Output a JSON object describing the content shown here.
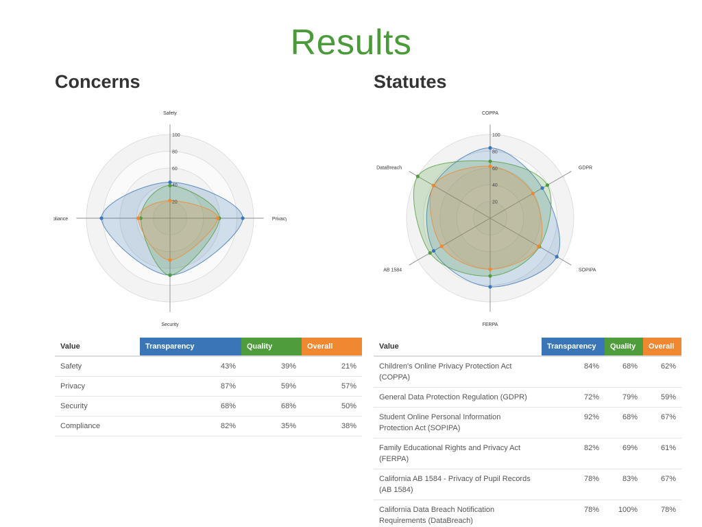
{
  "title": "Results",
  "concerns": {
    "heading": "Concerns",
    "table": {
      "headers": [
        "Value",
        "Transparency",
        "Quality",
        "Overall"
      ],
      "rows": [
        [
          "Safety",
          "43%",
          "39%",
          "21%"
        ],
        [
          "Privacy",
          "87%",
          "59%",
          "57%"
        ],
        [
          "Security",
          "68%",
          "68%",
          "50%"
        ],
        [
          "Compliance",
          "82%",
          "35%",
          "38%"
        ]
      ]
    }
  },
  "statutes": {
    "heading": "Statutes",
    "table": {
      "headers": [
        "Value",
        "Transparency",
        "Quality",
        "Overall"
      ],
      "rows": [
        [
          "Children's Online Privacy Protection Act (COPPA)",
          "84%",
          "68%",
          "62%"
        ],
        [
          "General Data Protection Regulation (GDPR)",
          "72%",
          "79%",
          "59%"
        ],
        [
          "Student Online Personal Information Protection Act (SOPIPA)",
          "92%",
          "68%",
          "67%"
        ],
        [
          "Family Educational Rights and Privacy Act (FERPA)",
          "82%",
          "69%",
          "61%"
        ],
        [
          "California AB 1584 - Privacy of Pupil Records (AB 1584)",
          "78%",
          "83%",
          "67%"
        ],
        [
          "California Data Breach Notification Requirements (DataBreach)",
          "78%",
          "100%",
          "78%"
        ]
      ]
    }
  },
  "chart_data": [
    {
      "type": "radar",
      "axes": [
        "Safety",
        "Privacy",
        "Security",
        "Compliance"
      ],
      "rlim": [
        0,
        100
      ],
      "ticks": [
        "20",
        "40",
        "60",
        "80",
        "100"
      ],
      "grid": true,
      "series": [
        {
          "name": "Transparency",
          "values": [
            43,
            87,
            68,
            82
          ],
          "color": "#3a76b7"
        },
        {
          "name": "Quality",
          "values": [
            39,
            59,
            68,
            35
          ],
          "color": "#4f9c3c"
        },
        {
          "name": "Overall",
          "values": [
            21,
            57,
            50,
            38
          ],
          "color": "#ef8830"
        }
      ]
    },
    {
      "type": "radar",
      "axes": [
        "COPPA",
        "GDPR",
        "SOPIPA",
        "FERPA",
        "AB 1584",
        "DataBreach"
      ],
      "rlim": [
        0,
        100
      ],
      "ticks": [
        "20",
        "40",
        "60",
        "80",
        "100"
      ],
      "grid": true,
      "series": [
        {
          "name": "Transparency",
          "values": [
            84,
            72,
            92,
            82,
            78,
            78
          ],
          "color": "#3a76b7"
        },
        {
          "name": "Quality",
          "values": [
            68,
            79,
            68,
            69,
            83,
            100
          ],
          "color": "#4f9c3c"
        },
        {
          "name": "Overall",
          "values": [
            62,
            59,
            67,
            61,
            67,
            78
          ],
          "color": "#ef8830"
        }
      ]
    }
  ]
}
